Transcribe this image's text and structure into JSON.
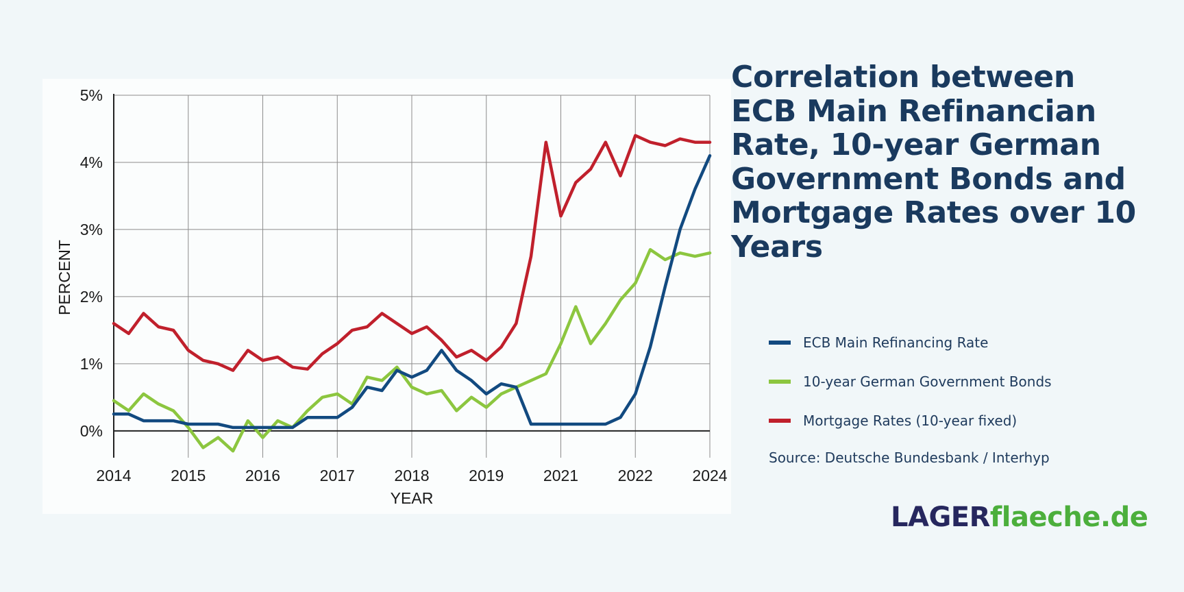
{
  "title": "Correlation between ECB Main Refinancian Rate, 10-year German Government Bonds and Mortgage Rates over 10 Years",
  "source": "Source: Deutsche Bundesbank / Interhyp",
  "brand": {
    "part1": "LAGER",
    "part2": "flaeche.de"
  },
  "colors": {
    "ecb": "#124a80",
    "bonds": "#8cc63f",
    "mortgage": "#c0202c",
    "title": "#1a3a5e",
    "background": "#f1f7f9"
  },
  "legend": [
    {
      "label": "ECB Main Refinancing Rate",
      "color": "#124a80"
    },
    {
      "label": "10-year German Government Bonds",
      "color": "#8cc63f"
    },
    {
      "label": "Mortgage Rates (10-year fixed)",
      "color": "#c0202c"
    }
  ],
  "chart_data": {
    "type": "line",
    "xlabel": "YEAR",
    "ylabel": "PERCENT",
    "x_tick_labels": [
      "2014",
      "2015",
      "2016",
      "2017",
      "2018",
      "2019",
      "2021",
      "2022",
      "2024"
    ],
    "y_tick_labels": [
      "0%",
      "1%",
      "2%",
      "3%",
      "4%",
      "5%"
    ],
    "ylim": [
      -0.4,
      5
    ],
    "grid": true,
    "legend_position": "right",
    "x": [
      2014.0,
      2014.25,
      2014.5,
      2014.75,
      2015.0,
      2015.25,
      2015.5,
      2015.75,
      2016.0,
      2016.25,
      2016.5,
      2016.75,
      2017.0,
      2017.25,
      2017.5,
      2017.75,
      2018.0,
      2018.25,
      2018.5,
      2018.75,
      2019.0,
      2019.25,
      2019.5,
      2019.75,
      2020.0,
      2020.25,
      2020.5,
      2020.75,
      2021.0,
      2021.25,
      2021.5,
      2021.75,
      2022.0,
      2022.25,
      2022.5,
      2022.75,
      2023.0,
      2023.25,
      2023.5,
      2023.75,
      2024.0
    ],
    "series": [
      {
        "name": "ECB Main Refinancing Rate",
        "values": [
          0.25,
          0.25,
          0.15,
          0.15,
          0.15,
          0.1,
          0.1,
          0.1,
          0.05,
          0.05,
          0.05,
          0.05,
          0.05,
          0.2,
          0.2,
          0.2,
          0.35,
          0.65,
          0.6,
          0.9,
          0.8,
          0.9,
          1.2,
          0.9,
          0.75,
          0.55,
          0.7,
          0.65,
          0.1,
          0.1,
          0.1,
          0.1,
          0.1,
          0.1,
          0.2,
          0.55,
          1.25,
          2.15,
          3.0,
          3.6,
          4.1
        ]
      },
      {
        "name": "10-year German Government Bonds",
        "values": [
          0.45,
          0.3,
          0.55,
          0.4,
          0.3,
          0.05,
          -0.25,
          -0.1,
          -0.3,
          0.15,
          -0.1,
          0.15,
          0.05,
          0.3,
          0.5,
          0.55,
          0.4,
          0.8,
          0.75,
          0.95,
          0.65,
          0.55,
          0.6,
          0.3,
          0.5,
          0.35,
          0.55,
          0.65,
          0.75,
          0.85,
          1.3,
          1.85,
          1.3,
          1.6,
          1.95,
          2.2,
          2.7,
          2.55,
          2.65,
          2.6,
          2.65
        ]
      },
      {
        "name": "Mortgage Rates (10-year fixed)",
        "values": [
          1.6,
          1.45,
          1.75,
          1.55,
          1.5,
          1.2,
          1.05,
          1.0,
          0.9,
          1.2,
          1.05,
          1.1,
          0.95,
          0.92,
          1.15,
          1.3,
          1.5,
          1.55,
          1.75,
          1.6,
          1.45,
          1.55,
          1.35,
          1.1,
          1.2,
          1.05,
          1.25,
          1.6,
          2.6,
          4.3,
          3.2,
          3.7,
          3.9,
          4.3,
          3.8,
          4.4,
          4.3,
          4.25,
          4.35,
          4.3,
          4.3
        ]
      }
    ]
  }
}
